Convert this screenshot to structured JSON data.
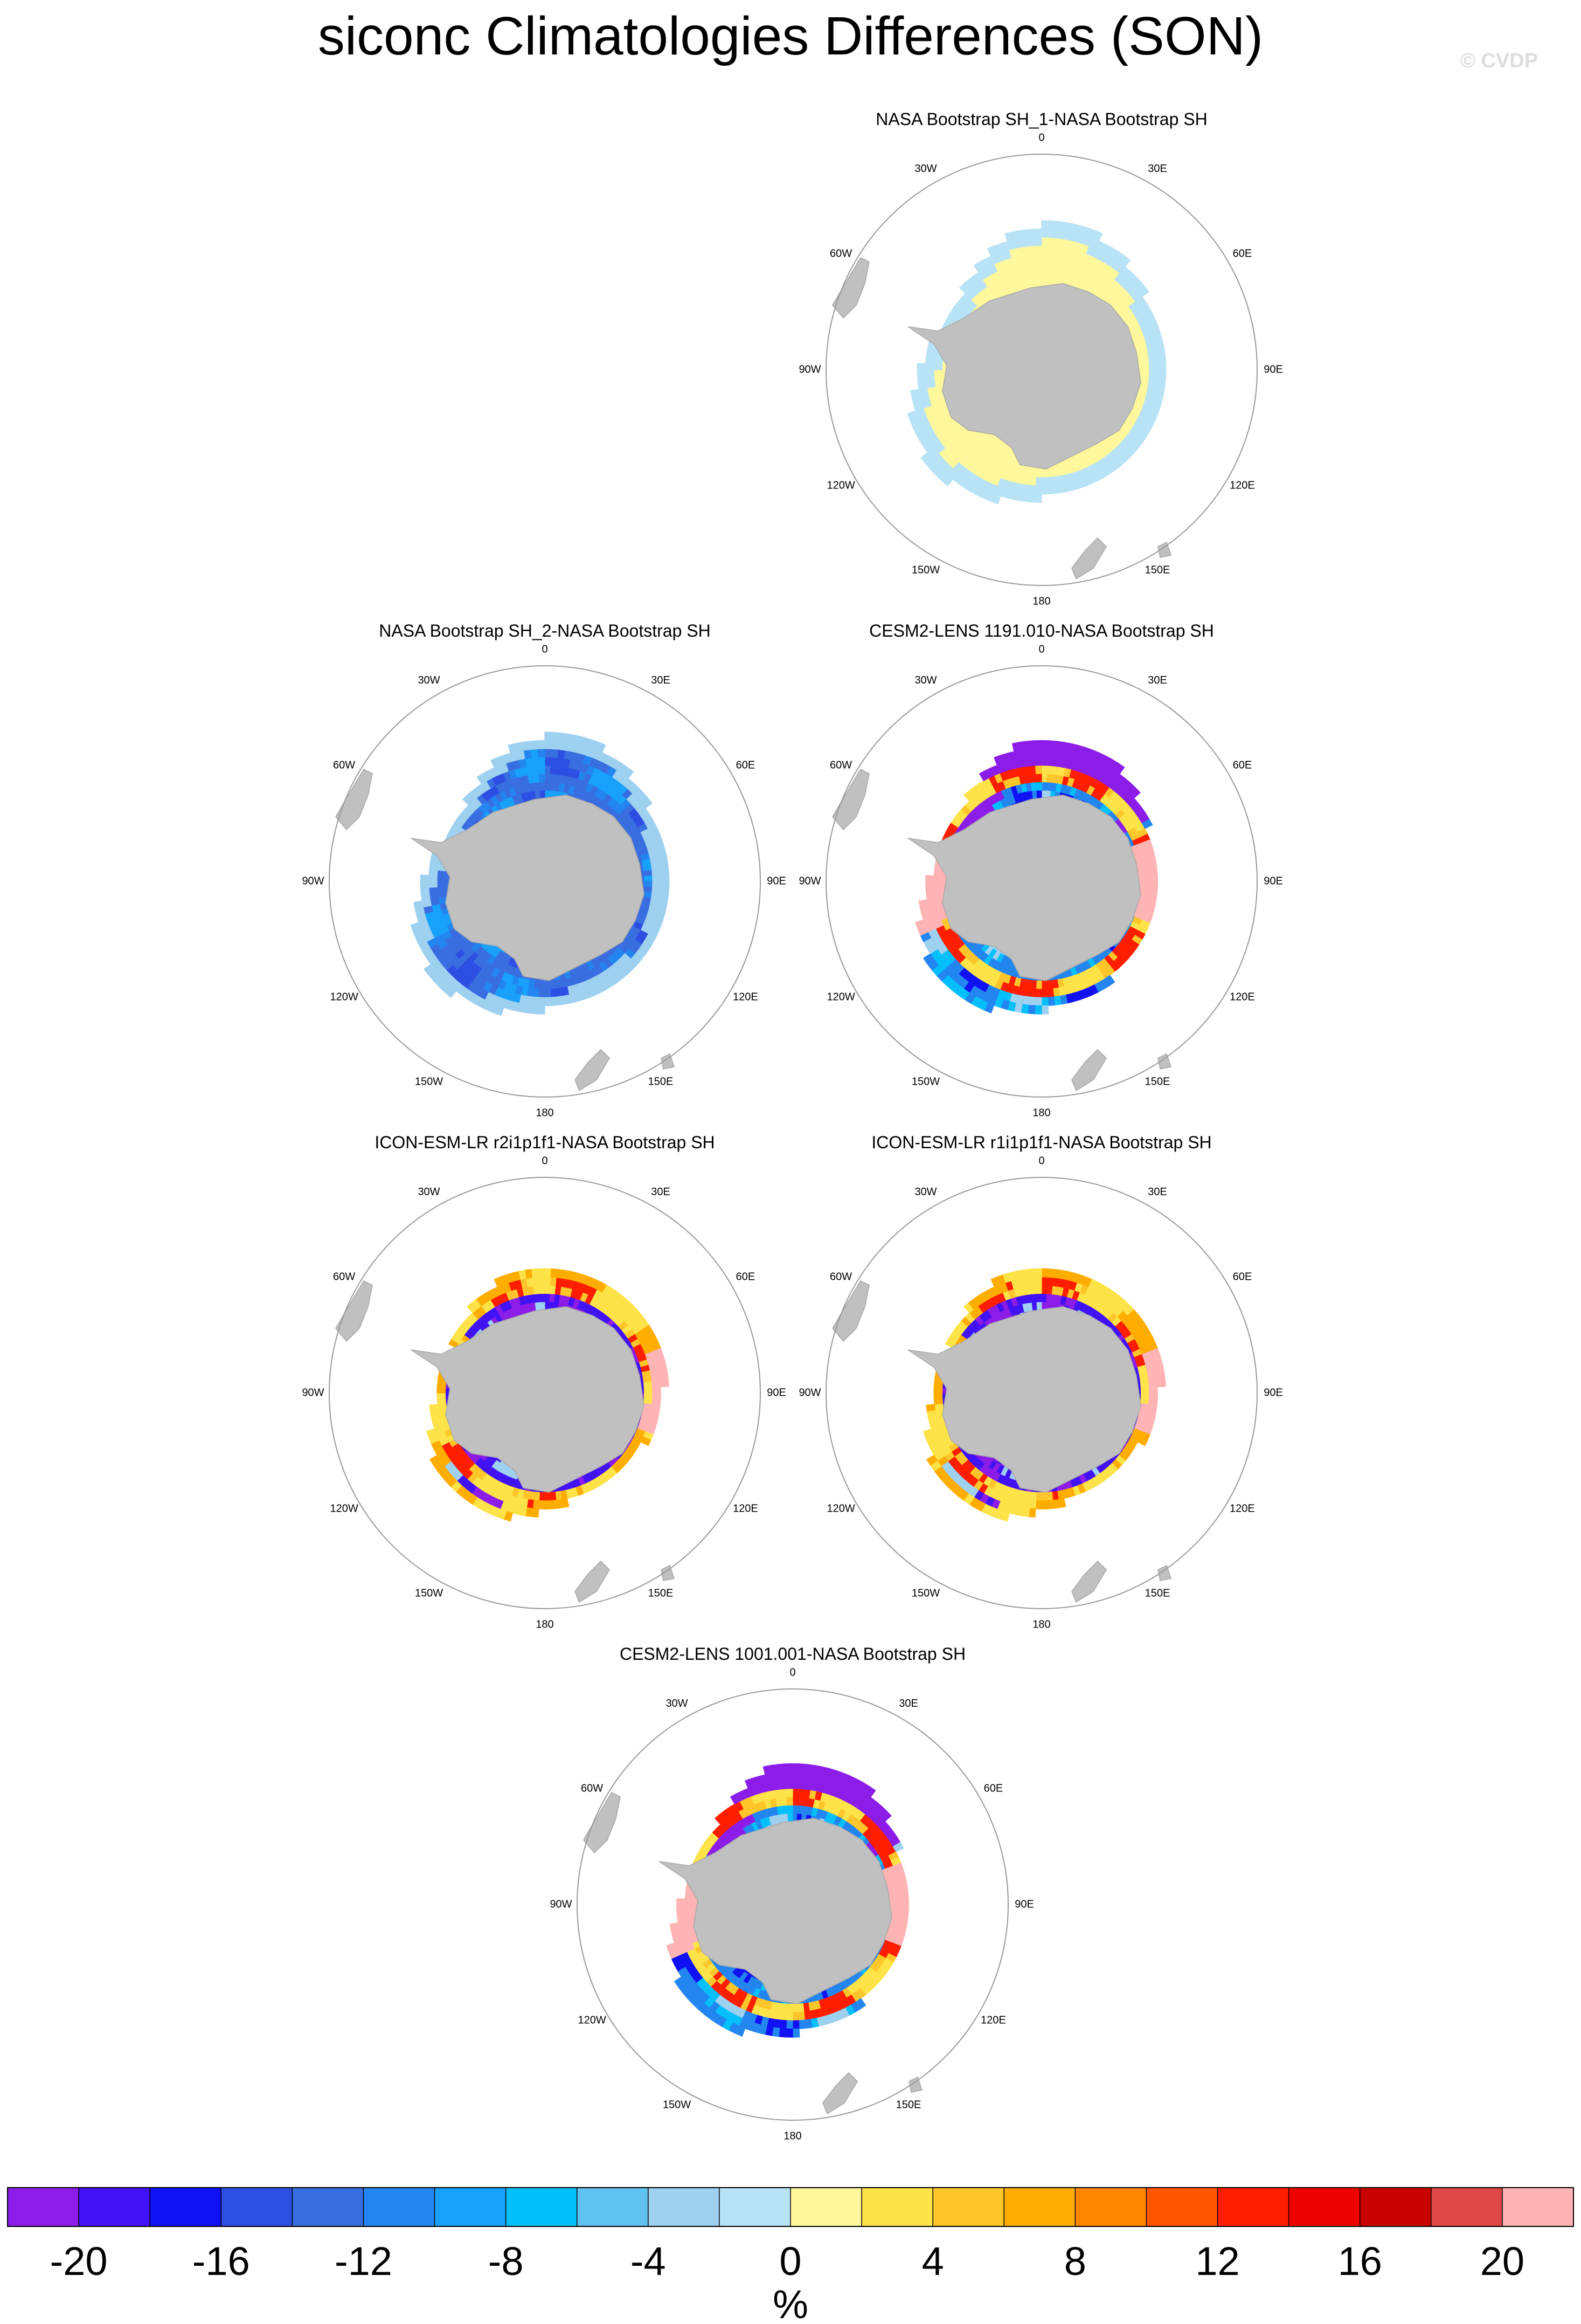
{
  "title": "siconc Climatologies Differences (SON)",
  "watermark": "© CVDP",
  "colors": {
    "land": "#c0c0c0",
    "outline": "#a9a9a9",
    "palette": [
      "#8c1ce8",
      "#4112f5",
      "#1111f5",
      "#2d4ee3",
      "#396ee0",
      "#2386f0",
      "#17a1fa",
      "#03c0fc",
      "#60c2f0",
      "#9ed0f0",
      "#b8e2f5",
      "#fef79b",
      "#fde347",
      "#fec62a",
      "#ffad00",
      "#fe8600",
      "#ff5500",
      "#ff1e00",
      "#ef0000",
      "#c90000",
      "#df4646",
      "#feb4b4"
    ]
  },
  "colorbar": {
    "ticks": [
      "-20",
      "-16",
      "-12",
      "-8",
      "-4",
      "0",
      "4",
      "8",
      "12",
      "16",
      "20"
    ],
    "unit": "%"
  },
  "lon_labels": [
    "0",
    "30E",
    "60E",
    "90E",
    "120E",
    "150E",
    "180",
    "150W",
    "120W",
    "90W",
    "60W",
    "30W"
  ],
  "panels": [
    {
      "title": "NASA Bootstrap SH_1-NASA Bootstrap SH",
      "pattern": "obs1"
    },
    {
      "title": "NASA Bootstrap SH_2-NASA Bootstrap SH",
      "pattern": "obs2"
    },
    {
      "title": "CESM2-LENS 1191.010-NASA Bootstrap SH",
      "pattern": "cesm"
    },
    {
      "title": "ICON-ESM-LR r2i1p1f1-NASA Bootstrap SH",
      "pattern": "icon"
    },
    {
      "title": "ICON-ESM-LR r1i1p1f1-NASA Bootstrap SH",
      "pattern": "icon"
    },
    {
      "title": "CESM2-LENS 1001.001-NASA Bootstrap SH",
      "pattern": "cesm"
    }
  ]
}
